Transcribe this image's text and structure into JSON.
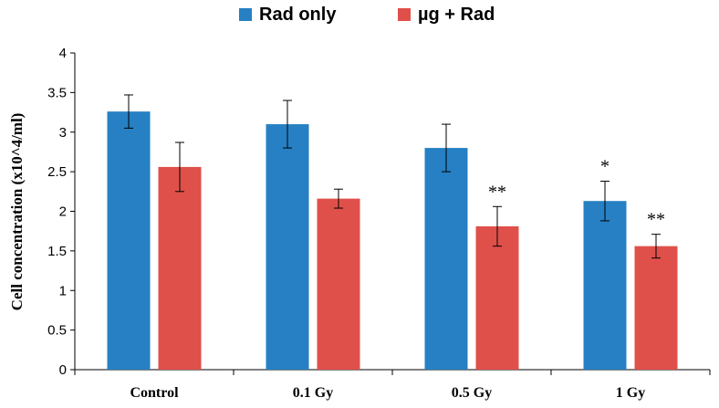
{
  "chart_data": {
    "type": "bar",
    "title": "",
    "xlabel": "",
    "ylabel": "Cell concentration (x10^4/ml)",
    "ylim": [
      0,
      4
    ],
    "yticks": [
      "0",
      "0.5",
      "1",
      "1.5",
      "2",
      "2.5",
      "3",
      "3.5",
      "4"
    ],
    "categories": [
      "Control",
      "0.1 Gy",
      "0.5 Gy",
      "1 Gy"
    ],
    "series": [
      {
        "name": "Rad only",
        "color": "#2680C3",
        "values": [
          3.26,
          3.1,
          2.8,
          2.13
        ],
        "errors": [
          0.21,
          0.3,
          0.3,
          0.25
        ],
        "annotations": [
          "",
          "",
          "",
          "*"
        ]
      },
      {
        "name": "µg + Rad",
        "color": "#E0504A",
        "values": [
          2.56,
          2.16,
          1.81,
          1.56
        ],
        "errors": [
          0.31,
          0.12,
          0.25,
          0.15
        ],
        "annotations": [
          "",
          "",
          "**",
          "**"
        ]
      }
    ],
    "legend_position": "top-center",
    "grid": false
  }
}
